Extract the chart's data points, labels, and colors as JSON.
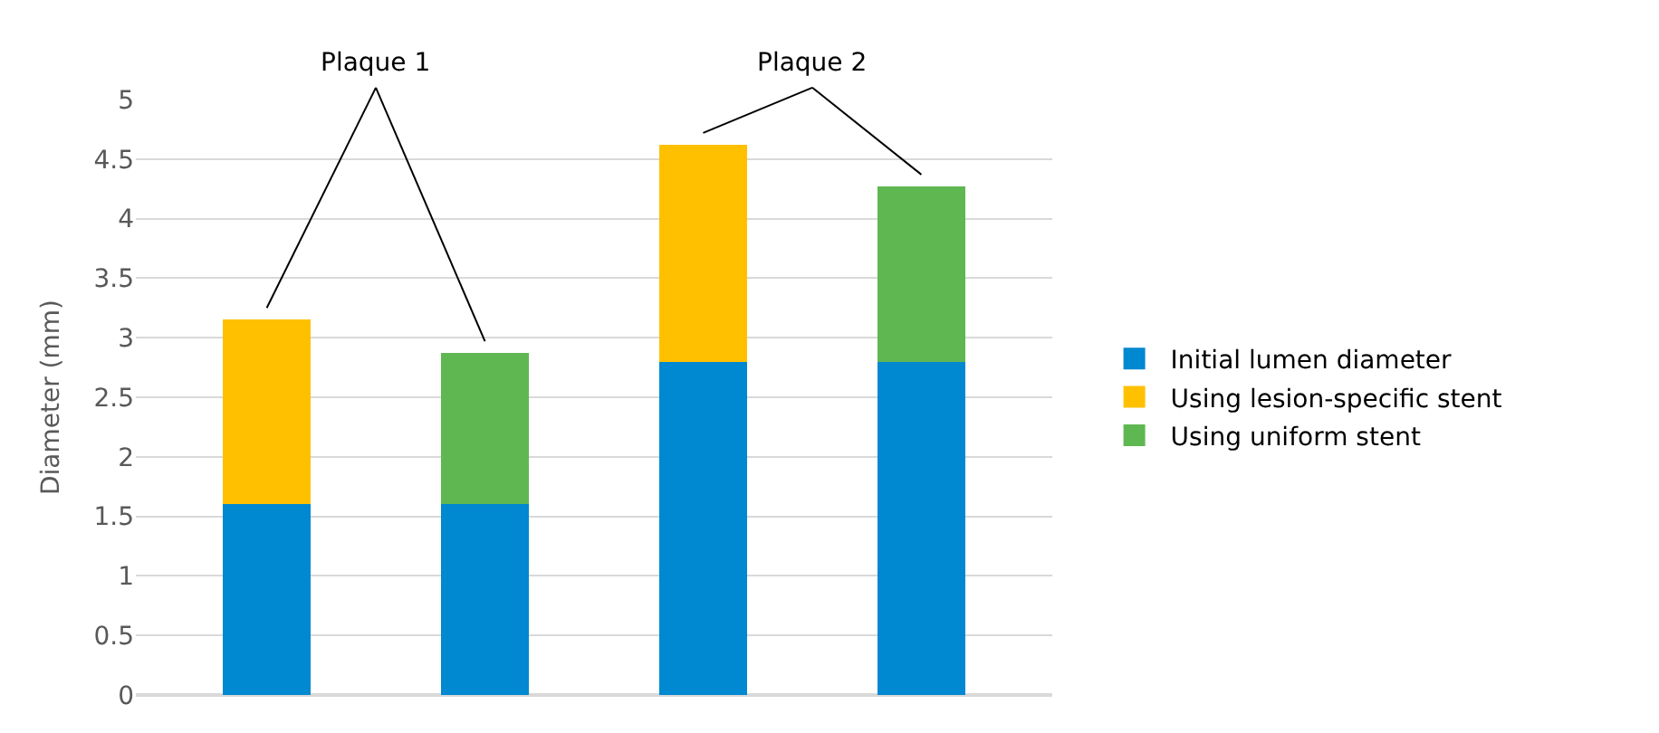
{
  "chart_data": {
    "type": "bar",
    "stacked": true,
    "ylabel": "Diameter (mm)",
    "categories": [
      null,
      null,
      null,
      null
    ],
    "series": [
      {
        "name": "Initial lumen diameter",
        "color": "#0088d1",
        "values": [
          1.6,
          1.6,
          2.8,
          2.8
        ]
      },
      {
        "name": "Using lesion-specific stent",
        "color": "#ffc000",
        "values": [
          1.55,
          null,
          1.82,
          null
        ]
      },
      {
        "name": "Using uniform stent",
        "color": "#5fb751",
        "values": [
          null,
          1.27,
          null,
          1.47
        ]
      }
    ],
    "ylim": [
      0,
      5
    ],
    "yticks": [
      0,
      0.5,
      1,
      1.5,
      2,
      2.5,
      3,
      3.5,
      4,
      4.5,
      5
    ],
    "grid": "y",
    "legend": "right",
    "tick_labels": "y",
    "annotations": [
      "Plaque 1",
      "Plaque 2"
    ]
  }
}
